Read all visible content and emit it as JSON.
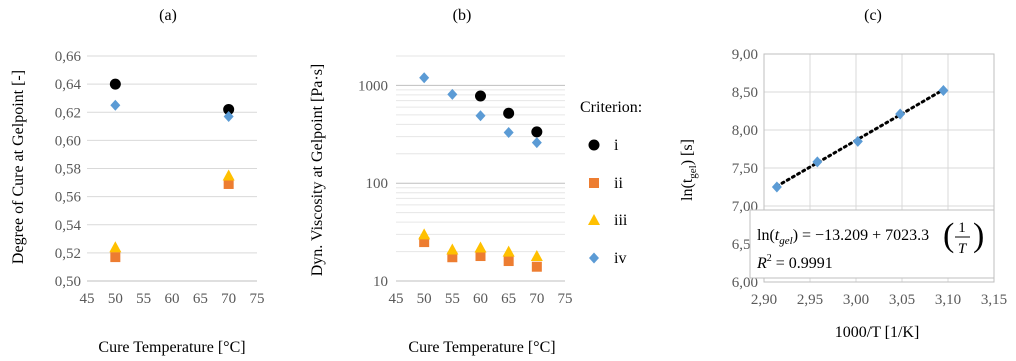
{
  "figure": {
    "panels": [
      "(a)",
      "(b)",
      "(c)"
    ],
    "legend_title": "Criterion:",
    "legend_items": [
      {
        "label": "i",
        "color": "#000000",
        "marker": "circle"
      },
      {
        "label": "ii",
        "color": "#ED7D31",
        "marker": "square"
      },
      {
        "label": "iii",
        "color": "#FFC000",
        "marker": "triangle"
      },
      {
        "label": "iv",
        "color": "#5B9BD5",
        "marker": "diamond"
      }
    ]
  },
  "chart_data": [
    {
      "type": "scatter",
      "panel": "(a)",
      "xlabel": "Cure Temperature [°C]",
      "ylabel": "Degree of Cure at Gelpoint [-]",
      "xlim": [
        45,
        75
      ],
      "ylim": [
        0.5,
        0.66
      ],
      "xticks": [
        "45",
        "50",
        "55",
        "60",
        "65",
        "70",
        "75"
      ],
      "yticks": [
        "0,50",
        "0,52",
        "0,54",
        "0,56",
        "0,58",
        "0,60",
        "0,62",
        "0,64",
        "0,66"
      ],
      "grid": true,
      "series": [
        {
          "name": "i",
          "x": [
            50,
            70
          ],
          "y": [
            0.64,
            0.622
          ]
        },
        {
          "name": "ii",
          "x": [
            50,
            70
          ],
          "y": [
            0.517,
            0.569
          ]
        },
        {
          "name": "iii",
          "x": [
            50,
            70
          ],
          "y": [
            0.524,
            0.575
          ]
        },
        {
          "name": "iv",
          "x": [
            50,
            70
          ],
          "y": [
            0.625,
            0.617
          ]
        }
      ]
    },
    {
      "type": "scatter",
      "panel": "(b)",
      "xlabel": "Cure Temperature [°C]",
      "ylabel": "Dyn. Viscosity at Gelpoint [Pa·s]",
      "xlim": [
        45,
        75
      ],
      "ylim": [
        10,
        2000
      ],
      "yscale": "log",
      "xticks": [
        "45",
        "50",
        "55",
        "60",
        "65",
        "70",
        "75"
      ],
      "yticks": [
        "10",
        "100",
        "1000"
      ],
      "grid": true,
      "series": [
        {
          "name": "i",
          "x": [
            60,
            65,
            70
          ],
          "y": [
            780,
            520,
            335
          ]
        },
        {
          "name": "ii",
          "x": [
            50,
            55,
            60,
            65,
            70
          ],
          "y": [
            25,
            17.5,
            18,
            16,
            14
          ]
        },
        {
          "name": "iii",
          "x": [
            50,
            55,
            60,
            65,
            70
          ],
          "y": [
            30,
            21,
            22,
            20,
            18
          ]
        },
        {
          "name": "iv",
          "x": [
            50,
            55,
            60,
            65,
            70
          ],
          "y": [
            1200,
            810,
            490,
            330,
            260
          ]
        }
      ]
    },
    {
      "type": "scatter",
      "panel": "(c)",
      "xlabel": "1000/T [1/K]",
      "ylabel": "ln(t_gel) [s]",
      "xlim": [
        2.9,
        3.15
      ],
      "ylim": [
        6.0,
        9.0
      ],
      "xticks": [
        "2,90",
        "2,95",
        "3,00",
        "3,05",
        "3,10",
        "3,15"
      ],
      "yticks": [
        "6,00",
        "6,50",
        "7,00",
        "7,50",
        "8,00",
        "8,50",
        "9,00"
      ],
      "grid": true,
      "series": [
        {
          "x": [
            2.914,
            2.958,
            3.002,
            3.048,
            3.095
          ],
          "y": [
            7.25,
            7.58,
            7.85,
            8.21,
            8.52
          ]
        }
      ],
      "trendline": {
        "style": "dotted",
        "x": [
          2.914,
          3.095
        ],
        "y": [
          7.26,
          8.53
        ]
      },
      "equation_parts": {
        "lhs": "ln(",
        "t": "t",
        "sub": "gel",
        "mid": ") = −13.209 + 7023.3",
        "num": "1",
        "den": "T"
      },
      "r2_parts": {
        "R": "R",
        "exp": "2",
        "rhs": " = 0.9991"
      }
    }
  ]
}
